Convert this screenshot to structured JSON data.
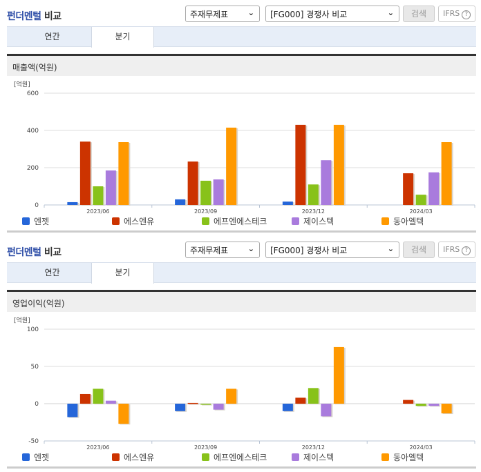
{
  "sections": [
    {
      "title_accent": "펀더멘털",
      "title_rest": " 비교",
      "select1": "주재무제표",
      "select2": "[FG000] 경쟁사 비교",
      "search_label": "검색",
      "ifrs_label": "IFRS",
      "help_icon": "?",
      "tabs": [
        {
          "label": "연간"
        },
        {
          "label": "분기"
        }
      ],
      "active_tab": "분기",
      "chart_title": "매출액(억원)"
    },
    {
      "title_accent": "펀더멘털",
      "title_rest": " 비교",
      "select1": "주재무제표",
      "select2": "[FG000] 경쟁사 비교",
      "search_label": "검색",
      "ifrs_label": "IFRS",
      "help_icon": "?",
      "tabs": [
        {
          "label": "연간"
        },
        {
          "label": "분기"
        }
      ],
      "active_tab": "분기",
      "chart_title": "영업이익(억원)"
    }
  ],
  "legend": [
    {
      "name": "엔젯",
      "color": "#2566d9"
    },
    {
      "name": "에스엔유",
      "color": "#cc3300"
    },
    {
      "name": "에프엔에스테크",
      "color": "#88c21a"
    },
    {
      "name": "제이스텍",
      "color": "#a97bdd"
    },
    {
      "name": "동아엘텍",
      "color": "#ff9900"
    }
  ],
  "chart_data": [
    {
      "type": "bar",
      "title": "매출액(억원)",
      "ylabel": "[억원]",
      "xlabel": "",
      "categories": [
        "2023/06",
        "2023/09",
        "2023/12",
        "2024/03"
      ],
      "yticks": [
        0,
        200,
        400,
        600
      ],
      "ylim": [
        0,
        600
      ],
      "grid": true,
      "legend_position": "bottom",
      "series": [
        {
          "name": "엔젯",
          "values": [
            15,
            30,
            18,
            0
          ]
        },
        {
          "name": "에스엔유",
          "values": [
            340,
            233,
            430,
            170
          ]
        },
        {
          "name": "에프엔에스테크",
          "values": [
            100,
            130,
            110,
            55
          ]
        },
        {
          "name": "제이스텍",
          "values": [
            185,
            137,
            240,
            175
          ]
        },
        {
          "name": "동아엘텍",
          "values": [
            337,
            415,
            430,
            337
          ]
        }
      ]
    },
    {
      "type": "bar",
      "title": "영업이익(억원)",
      "ylabel": "[억원]",
      "xlabel": "",
      "categories": [
        "2023/06",
        "2023/09",
        "2023/12",
        "2024/03"
      ],
      "yticks": [
        -50,
        0,
        50,
        100
      ],
      "ylim": [
        -50,
        100
      ],
      "grid": true,
      "legend_position": "bottom",
      "series": [
        {
          "name": "엔젯",
          "values": [
            -18,
            -10,
            -10,
            0
          ]
        },
        {
          "name": "에스엔유",
          "values": [
            13,
            1,
            8,
            5
          ]
        },
        {
          "name": "에프엔에스테크",
          "values": [
            20,
            -1,
            21,
            -3
          ]
        },
        {
          "name": "제이스텍",
          "values": [
            4,
            -8,
            -17,
            -3
          ]
        },
        {
          "name": "동아엘텍",
          "values": [
            -27,
            20,
            76,
            -13
          ]
        }
      ]
    }
  ]
}
